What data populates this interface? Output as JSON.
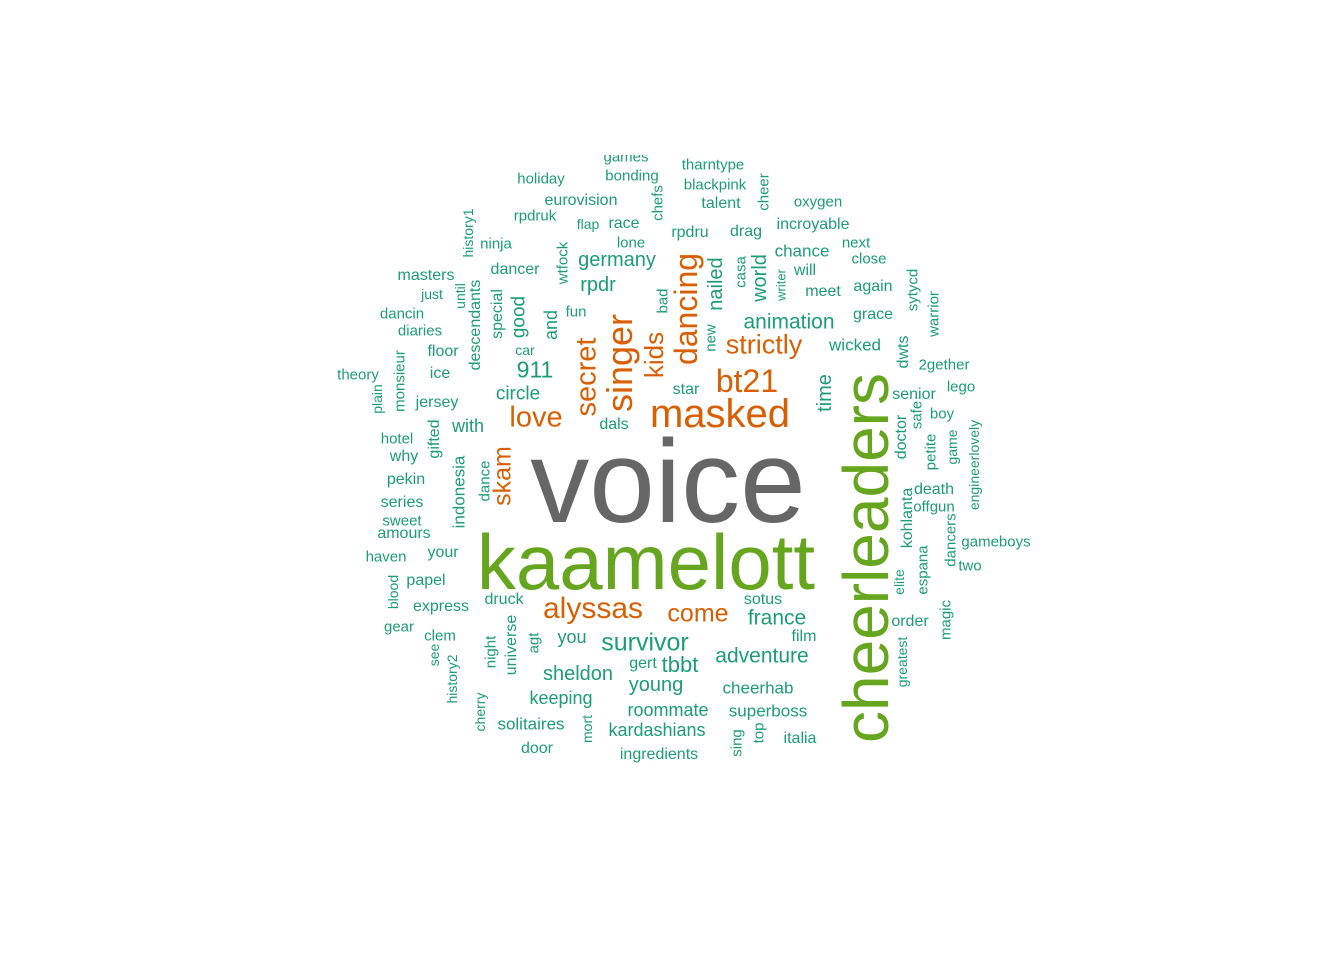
{
  "colors": {
    "teal": "#1b9e77",
    "orange": "#d95f02",
    "green": "#66a61e",
    "gray": "#666666"
  },
  "words": [
    {
      "text": "voice",
      "color": "gray"
    },
    {
      "text": "kaamelott",
      "color": "green"
    },
    {
      "text": "cheerleaders",
      "color": "green"
    },
    {
      "text": "masked",
      "color": "orange"
    },
    {
      "text": "singer",
      "color": "orange"
    },
    {
      "text": "dancing",
      "color": "orange"
    },
    {
      "text": "bt21",
      "color": "orange"
    },
    {
      "text": "secret",
      "color": "orange"
    },
    {
      "text": "alyssas",
      "color": "orange"
    },
    {
      "text": "love",
      "color": "orange"
    },
    {
      "text": "strictly",
      "color": "orange"
    },
    {
      "text": "kids",
      "color": "orange"
    },
    {
      "text": "come",
      "color": "orange"
    },
    {
      "text": "skam",
      "color": "orange"
    },
    {
      "text": "survivor",
      "color": "teal"
    },
    {
      "text": "tbbt",
      "color": "teal"
    },
    {
      "text": "adventure",
      "color": "teal"
    },
    {
      "text": "france",
      "color": "teal"
    },
    {
      "text": "animation",
      "color": "teal"
    },
    {
      "text": "911",
      "color": "teal"
    },
    {
      "text": "circle",
      "color": "teal"
    },
    {
      "text": "germany",
      "color": "teal"
    },
    {
      "text": "rpdr",
      "color": "teal"
    },
    {
      "text": "time",
      "color": "teal"
    },
    {
      "text": "nailed",
      "color": "teal"
    },
    {
      "text": "world",
      "color": "teal"
    },
    {
      "text": "sheldon",
      "color": "teal"
    },
    {
      "text": "young",
      "color": "teal"
    },
    {
      "text": "keeping",
      "color": "teal"
    },
    {
      "text": "roommate",
      "color": "teal"
    },
    {
      "text": "kardashians",
      "color": "teal"
    },
    {
      "text": "superboss",
      "color": "teal"
    },
    {
      "text": "cheerhab",
      "color": "teal"
    },
    {
      "text": "solitaires",
      "color": "teal"
    },
    {
      "text": "ingredients",
      "color": "teal"
    },
    {
      "text": "door",
      "color": "teal"
    },
    {
      "text": "italia",
      "color": "teal"
    },
    {
      "text": "good",
      "color": "teal"
    },
    {
      "text": "and",
      "color": "teal"
    },
    {
      "text": "with",
      "color": "teal"
    },
    {
      "text": "you",
      "color": "teal"
    },
    {
      "text": "druck",
      "color": "teal"
    },
    {
      "text": "sotus",
      "color": "teal"
    },
    {
      "text": "film",
      "color": "teal"
    },
    {
      "text": "gert",
      "color": "teal"
    },
    {
      "text": "star",
      "color": "teal"
    },
    {
      "text": "dals",
      "color": "teal"
    },
    {
      "text": "wicked",
      "color": "teal"
    },
    {
      "text": "grace",
      "color": "teal"
    },
    {
      "text": "meet",
      "color": "teal"
    },
    {
      "text": "again",
      "color": "teal"
    },
    {
      "text": "will",
      "color": "teal"
    },
    {
      "text": "close",
      "color": "teal"
    },
    {
      "text": "next",
      "color": "teal"
    },
    {
      "text": "chance",
      "color": "teal"
    },
    {
      "text": "incroyable",
      "color": "teal"
    },
    {
      "text": "oxygen",
      "color": "teal"
    },
    {
      "text": "talent",
      "color": "teal"
    },
    {
      "text": "blackpink",
      "color": "teal"
    },
    {
      "text": "tharntype",
      "color": "teal"
    },
    {
      "text": "drag",
      "color": "teal"
    },
    {
      "text": "rpdru",
      "color": "teal"
    },
    {
      "text": "lone",
      "color": "teal"
    },
    {
      "text": "race",
      "color": "teal"
    },
    {
      "text": "flap",
      "color": "teal"
    },
    {
      "text": "eurovision",
      "color": "teal"
    },
    {
      "text": "bonding",
      "color": "teal"
    },
    {
      "text": "games",
      "color": "teal"
    },
    {
      "text": "holiday",
      "color": "teal"
    },
    {
      "text": "rpdruk",
      "color": "teal"
    },
    {
      "text": "ninja",
      "color": "teal"
    },
    {
      "text": "dancer",
      "color": "teal"
    },
    {
      "text": "masters",
      "color": "teal"
    },
    {
      "text": "just",
      "color": "teal"
    },
    {
      "text": "dancin",
      "color": "teal"
    },
    {
      "text": "diaries",
      "color": "teal"
    },
    {
      "text": "floor",
      "color": "teal"
    },
    {
      "text": "ice",
      "color": "teal"
    },
    {
      "text": "theory",
      "color": "teal"
    },
    {
      "text": "jersey",
      "color": "teal"
    },
    {
      "text": "hotel",
      "color": "teal"
    },
    {
      "text": "why",
      "color": "teal"
    },
    {
      "text": "pekin",
      "color": "teal"
    },
    {
      "text": "series",
      "color": "teal"
    },
    {
      "text": "sweet",
      "color": "teal"
    },
    {
      "text": "amours",
      "color": "teal"
    },
    {
      "text": "haven",
      "color": "teal"
    },
    {
      "text": "your",
      "color": "teal"
    },
    {
      "text": "papel",
      "color": "teal"
    },
    {
      "text": "express",
      "color": "teal"
    },
    {
      "text": "gear",
      "color": "teal"
    },
    {
      "text": "clem",
      "color": "teal"
    },
    {
      "text": "car",
      "color": "teal"
    },
    {
      "text": "fun",
      "color": "teal"
    },
    {
      "text": "senior",
      "color": "teal"
    },
    {
      "text": "boy",
      "color": "teal"
    },
    {
      "text": "lego",
      "color": "teal"
    },
    {
      "text": "2gether",
      "color": "teal"
    },
    {
      "text": "death",
      "color": "teal"
    },
    {
      "text": "offgun",
      "color": "teal"
    },
    {
      "text": "gameboys",
      "color": "teal"
    },
    {
      "text": "two",
      "color": "teal"
    },
    {
      "text": "order",
      "color": "teal"
    },
    {
      "text": "history1",
      "color": "teal"
    },
    {
      "text": "wtfock",
      "color": "teal"
    },
    {
      "text": "chefs",
      "color": "teal"
    },
    {
      "text": "cheer",
      "color": "teal"
    },
    {
      "text": "casa",
      "color": "teal"
    },
    {
      "text": "writer",
      "color": "teal"
    },
    {
      "text": "new",
      "color": "teal"
    },
    {
      "text": "bad",
      "color": "teal"
    },
    {
      "text": "special",
      "color": "teal"
    },
    {
      "text": "descendants",
      "color": "teal"
    },
    {
      "text": "until",
      "color": "teal"
    },
    {
      "text": "monsieur",
      "color": "teal"
    },
    {
      "text": "plain",
      "color": "teal"
    },
    {
      "text": "gifted",
      "color": "teal"
    },
    {
      "text": "indonesia",
      "color": "teal"
    },
    {
      "text": "dance",
      "color": "teal"
    },
    {
      "text": "blood",
      "color": "teal"
    },
    {
      "text": "see",
      "color": "teal"
    },
    {
      "text": "history2",
      "color": "teal"
    },
    {
      "text": "cherry",
      "color": "teal"
    },
    {
      "text": "night",
      "color": "teal"
    },
    {
      "text": "universe",
      "color": "teal"
    },
    {
      "text": "agt",
      "color": "teal"
    },
    {
      "text": "mort",
      "color": "teal"
    },
    {
      "text": "sing",
      "color": "teal"
    },
    {
      "text": "top",
      "color": "teal"
    },
    {
      "text": "sytycd",
      "color": "teal"
    },
    {
      "text": "warrior",
      "color": "teal"
    },
    {
      "text": "dwts",
      "color": "teal"
    },
    {
      "text": "safe",
      "color": "teal"
    },
    {
      "text": "doctor",
      "color": "teal"
    },
    {
      "text": "petite",
      "color": "teal"
    },
    {
      "text": "game",
      "color": "teal"
    },
    {
      "text": "engineerlovely",
      "color": "teal"
    },
    {
      "text": "kohlanta",
      "color": "teal"
    },
    {
      "text": "elite",
      "color": "teal"
    },
    {
      "text": "espana",
      "color": "teal"
    },
    {
      "text": "dancers",
      "color": "teal"
    },
    {
      "text": "magic",
      "color": "teal"
    },
    {
      "text": "greatest",
      "color": "teal"
    }
  ]
}
